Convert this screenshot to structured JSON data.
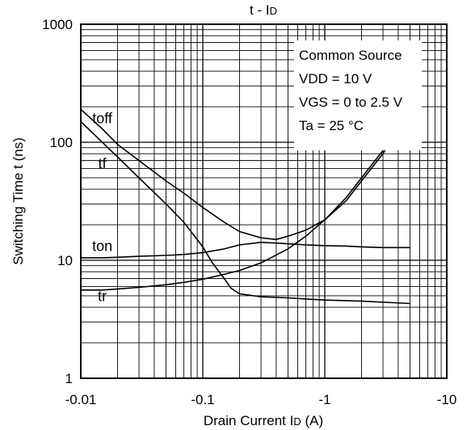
{
  "chart_data": {
    "type": "line",
    "title": "t - ID",
    "xlabel": "Drain Current ID (A)",
    "ylabel": "Switching Time t (ns)",
    "x_scale": "log",
    "y_scale": "log",
    "x_axis_direction": "decreasing magnitude of negative current; plotted as |ID|",
    "xlim": [
      -0.01,
      -10
    ],
    "ylim": [
      1,
      1000
    ],
    "x_ticks": [
      {
        "value": -0.01,
        "label": "-0.01"
      },
      {
        "value": -0.1,
        "label": "-0.1"
      },
      {
        "value": -1,
        "label": "-1"
      },
      {
        "value": -10,
        "label": "-10"
      }
    ],
    "y_ticks": [
      {
        "value": 1,
        "label": "1"
      },
      {
        "value": 10,
        "label": "10"
      },
      {
        "value": 100,
        "label": "100"
      },
      {
        "value": 1000,
        "label": "1000"
      }
    ],
    "grid": true,
    "annotation_box": {
      "lines": [
        "Common Source",
        "VDD = 10 V",
        "VGS = 0 to 2.5 V",
        "Ta = 25 °C"
      ]
    },
    "series": [
      {
        "name": "toff",
        "points": [
          [
            -0.01,
            190
          ],
          [
            -0.015,
            130
          ],
          [
            -0.02,
            96
          ],
          [
            -0.03,
            70
          ],
          [
            -0.05,
            47
          ],
          [
            -0.07,
            37
          ],
          [
            -0.1,
            28
          ],
          [
            -0.15,
            21
          ],
          [
            -0.2,
            17.5
          ],
          [
            -0.3,
            15.5
          ],
          [
            -0.4,
            15
          ],
          [
            -0.5,
            16
          ],
          [
            -0.7,
            18
          ],
          [
            -1,
            22
          ],
          [
            -1.5,
            32
          ],
          [
            -2,
            47
          ],
          [
            -3,
            80
          ],
          [
            -3.6,
            110
          ]
        ]
      },
      {
        "name": "tf",
        "points": [
          [
            -0.01,
            150
          ],
          [
            -0.015,
            100
          ],
          [
            -0.02,
            75
          ],
          [
            -0.03,
            50
          ],
          [
            -0.05,
            30
          ],
          [
            -0.07,
            21
          ],
          [
            -0.1,
            13
          ],
          [
            -0.12,
            9.5
          ],
          [
            -0.15,
            7
          ],
          [
            -0.17,
            5.8
          ],
          [
            -0.2,
            5.2
          ],
          [
            -0.3,
            4.9
          ],
          [
            -0.5,
            4.8
          ],
          [
            -0.7,
            4.7
          ],
          [
            -1,
            4.6
          ],
          [
            -2,
            4.5
          ],
          [
            -5,
            4.3
          ]
        ]
      },
      {
        "name": "ton",
        "points": [
          [
            -0.01,
            10.5
          ],
          [
            -0.015,
            10.5
          ],
          [
            -0.02,
            10.6
          ],
          [
            -0.03,
            10.8
          ],
          [
            -0.05,
            11
          ],
          [
            -0.07,
            11.2
          ],
          [
            -0.1,
            11.6
          ],
          [
            -0.15,
            12.5
          ],
          [
            -0.2,
            13.5
          ],
          [
            -0.3,
            14.2
          ],
          [
            -0.5,
            13.8
          ],
          [
            -0.7,
            13.5
          ],
          [
            -1,
            13.3
          ],
          [
            -1.5,
            13.2
          ],
          [
            -2,
            13
          ],
          [
            -3,
            12.8
          ],
          [
            -5,
            12.8
          ]
        ]
      },
      {
        "name": "tr",
        "points": [
          [
            -0.01,
            5.6
          ],
          [
            -0.015,
            5.6
          ],
          [
            -0.02,
            5.7
          ],
          [
            -0.03,
            5.9
          ],
          [
            -0.05,
            6.2
          ],
          [
            -0.07,
            6.5
          ],
          [
            -0.1,
            6.9
          ],
          [
            -0.15,
            7.6
          ],
          [
            -0.2,
            8.2
          ],
          [
            -0.3,
            9.5
          ],
          [
            -0.5,
            12.5
          ],
          [
            -0.7,
            16
          ],
          [
            -1,
            22
          ],
          [
            -1.5,
            34
          ],
          [
            -2,
            50
          ],
          [
            -3,
            85
          ],
          [
            -3.8,
            115
          ]
        ]
      }
    ],
    "series_label_positions": [
      {
        "name": "toff",
        "anchor": [
          -0.015,
          145
        ]
      },
      {
        "name": "tf",
        "anchor": [
          -0.015,
          60
        ]
      },
      {
        "name": "ton",
        "anchor": [
          -0.015,
          12
        ]
      },
      {
        "name": "tr",
        "anchor": [
          -0.015,
          4.5
        ]
      }
    ]
  }
}
